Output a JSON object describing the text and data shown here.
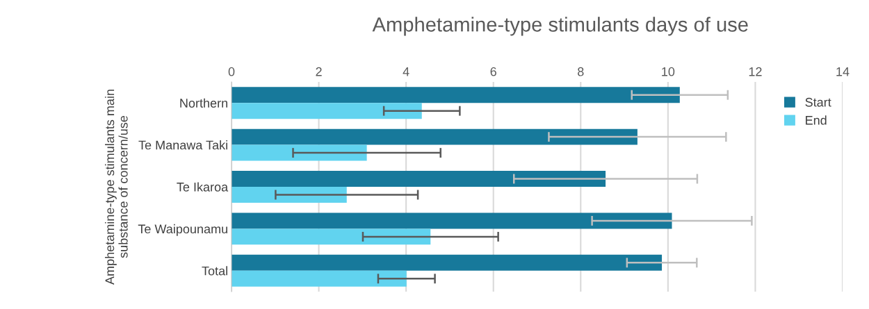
{
  "chart_data": {
    "type": "bar",
    "orientation": "horizontal",
    "title": "Amphetamine-type stimulants days of use",
    "ylabel": "Amphetamine-type stimulants main substance of concern/use",
    "categories": [
      "Northern",
      "Te Manawa Taki",
      "Te Ikaroa",
      "Te Waipounamu",
      "Total"
    ],
    "series": [
      {
        "name": "Start",
        "color": "#17799b",
        "values": [
          10.27,
          9.3,
          8.57,
          10.09,
          9.86
        ],
        "errors": [
          1.1,
          2.03,
          2.1,
          1.83,
          0.8
        ]
      },
      {
        "name": "End",
        "color": "#61d3ef",
        "values": [
          4.36,
          3.1,
          2.64,
          4.56,
          4.01
        ],
        "errors": [
          0.87,
          1.69,
          1.63,
          1.55,
          0.65
        ]
      }
    ],
    "xlim": [
      0,
      14
    ],
    "xticks": [
      0,
      2,
      4,
      6,
      8,
      10,
      12,
      14
    ],
    "grid": "x",
    "legend": "top right"
  }
}
